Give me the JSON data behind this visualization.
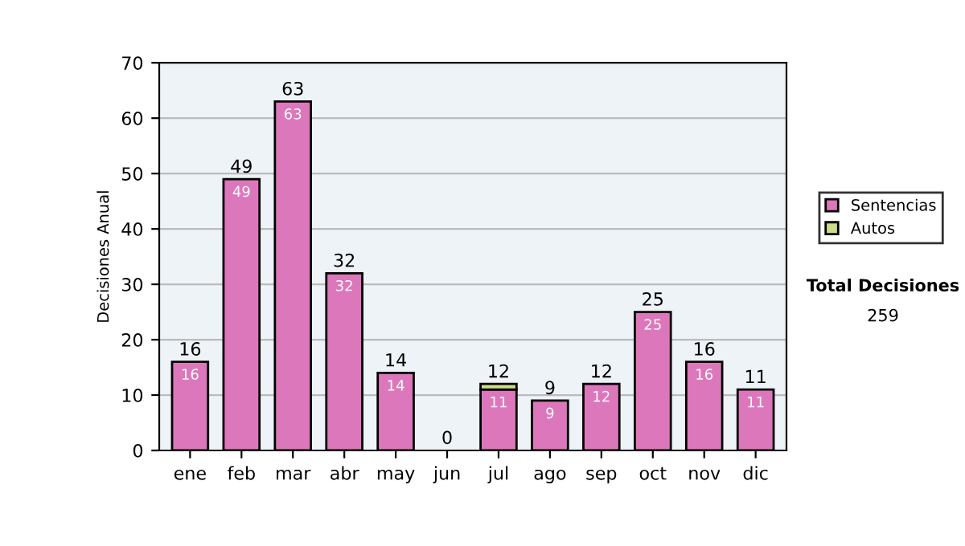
{
  "chart_data": {
    "type": "bar",
    "stacked": true,
    "ylabel": "Decisiones Anual",
    "categories": [
      "ene",
      "feb",
      "mar",
      "abr",
      "may",
      "jun",
      "jul",
      "ago",
      "sep",
      "oct",
      "nov",
      "dic"
    ],
    "series": [
      {
        "name": "Sentencias",
        "color": "#dd77bb",
        "values": [
          16,
          49,
          63,
          32,
          14,
          0,
          11,
          9,
          12,
          25,
          16,
          11
        ],
        "value_labels": [
          "16",
          "49",
          "63",
          "32",
          "14",
          null,
          "11",
          "9",
          "12",
          "25",
          "16",
          "11"
        ]
      },
      {
        "name": "Autos",
        "color": "#ccdd88",
        "values": [
          0,
          0,
          0,
          0,
          0,
          0,
          1,
          0,
          0,
          0,
          0,
          0
        ]
      }
    ],
    "totals": [
      "16",
      "49",
      "63",
      "32",
      "14",
      "0",
      "12",
      "9",
      "12",
      "25",
      "16",
      "11"
    ],
    "ylim": [
      0,
      70
    ],
    "yticks": [
      0,
      10,
      20,
      30,
      40,
      50,
      60,
      70
    ],
    "grid": "y",
    "legend": "right",
    "annotations": [
      "Total Decisiones",
      "259"
    ]
  }
}
